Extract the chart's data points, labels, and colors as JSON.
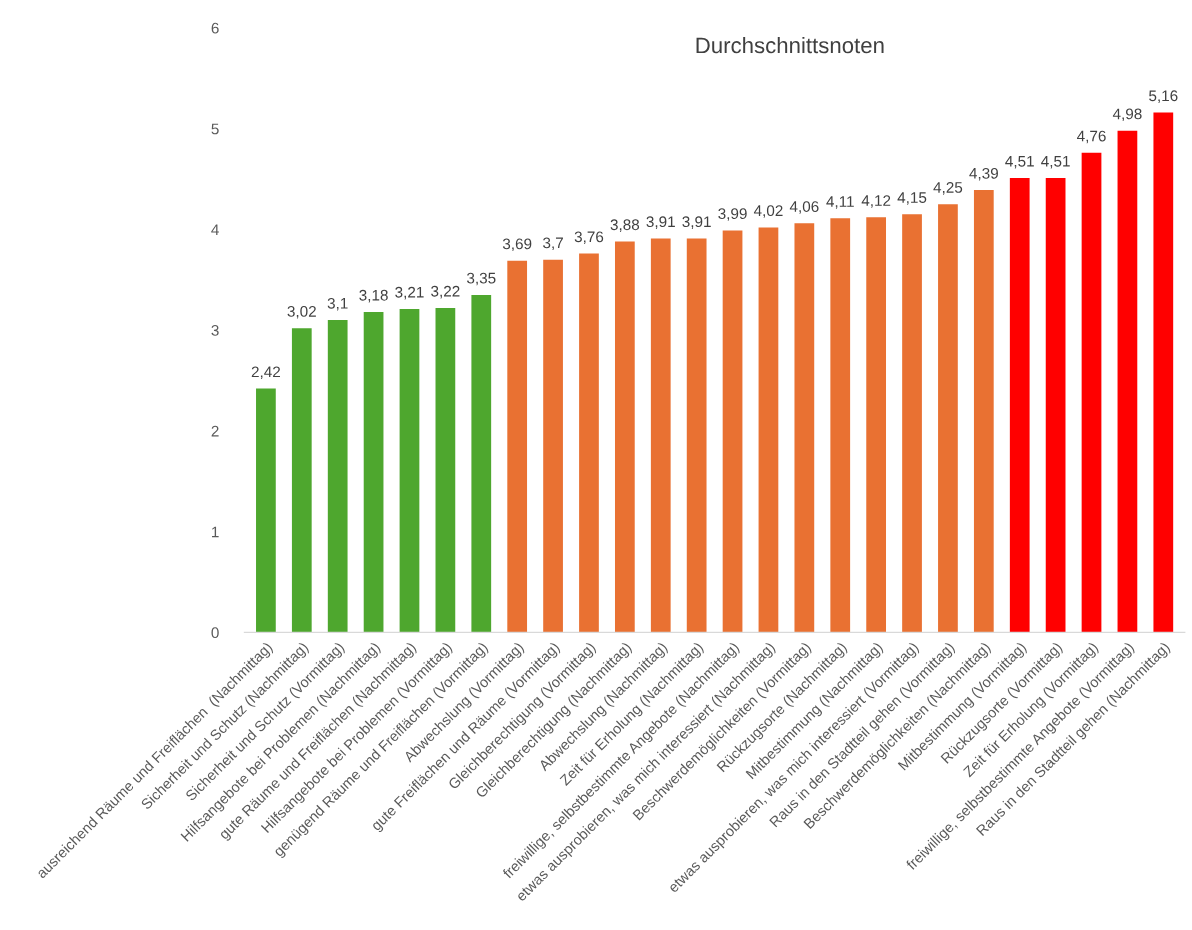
{
  "chart_data": {
    "type": "bar",
    "title": "Durchschnittsnoten",
    "categories": [
      "ausreichend Räume und Freiflächen  (Nachmittag)",
      "Sicherheit und Schutz (Nachmittag)",
      "Sicherheit und Schutz (Vormittag)",
      "Hilfsangebote bei Problemen (Nachmittag)",
      "gute Räume und Freiflächen (Nachmittag)",
      "Hilfsangebote bei Problemen (Vormittag)",
      "genügend Räume und Freiflächen (Vormittag)",
      "Abwechslung (Vormittag)",
      "gute Freiflächen und Räume (Vormittag)",
      "Gleichberechtigung (Vormittag)",
      "Gleichberechtigung (Nachmittag)",
      "Abwechslung (Nachmittag)",
      "Zeit für Erholung (Nachmittag)",
      "freiwillige, selbstbestimmte Angebote (Nachmittag)",
      "etwas ausprobieren, was mich interessiert (Nachmittag)",
      "Beschwerdemöglichkeiten (Vormittag)",
      "Rückzugsorte (Nachmittag)",
      "Mitbestimmung (Nachmittag)",
      "etwas ausprobieren, was mich interessiert (Vormittag)",
      "Raus in den Stadtteil gehen (Vormittag)",
      "Beschwerdemöglichkeiten (Nachmittag)",
      "Mitbestimmung (Vormittag)",
      "Rückzugsorte (Vormittag)",
      "Zeit für Erholung (Vormittag)",
      "freiwillige, selbstbestimmte Angebote (Vormittag)",
      "Raus in den Stadtteil gehen (Nachmittag)"
    ],
    "values": [
      2.42,
      3.02,
      3.1,
      3.18,
      3.21,
      3.22,
      3.35,
      3.69,
      3.7,
      3.76,
      3.88,
      3.91,
      3.91,
      3.99,
      4.02,
      4.06,
      4.11,
      4.12,
      4.15,
      4.25,
      4.39,
      4.51,
      4.51,
      4.76,
      4.98,
      5.16
    ],
    "value_labels": [
      "2,42",
      "3,02",
      "3,1",
      "3,18",
      "3,21",
      "3,22",
      "3,35",
      "3,69",
      "3,7",
      "3,76",
      "3,88",
      "3,91",
      "3,91",
      "3,99",
      "4,02",
      "4,06",
      "4,11",
      "4,12",
      "4,15",
      "4,25",
      "4,39",
      "4,51",
      "4,51",
      "4,76",
      "4,98",
      "5,16"
    ],
    "colors": [
      "#4ea72e",
      "#4ea72e",
      "#4ea72e",
      "#4ea72e",
      "#4ea72e",
      "#4ea72e",
      "#4ea72e",
      "#e97132",
      "#e97132",
      "#e97132",
      "#e97132",
      "#e97132",
      "#e97132",
      "#e97132",
      "#e97132",
      "#e97132",
      "#e97132",
      "#e97132",
      "#e97132",
      "#e97132",
      "#e97132",
      "#ff0000",
      "#ff0000",
      "#ff0000",
      "#ff0000",
      "#ff0000"
    ],
    "ylim": [
      0,
      6
    ],
    "yticks": [
      0,
      1,
      2,
      3,
      4,
      5,
      6
    ],
    "grid": false,
    "legend": false
  }
}
